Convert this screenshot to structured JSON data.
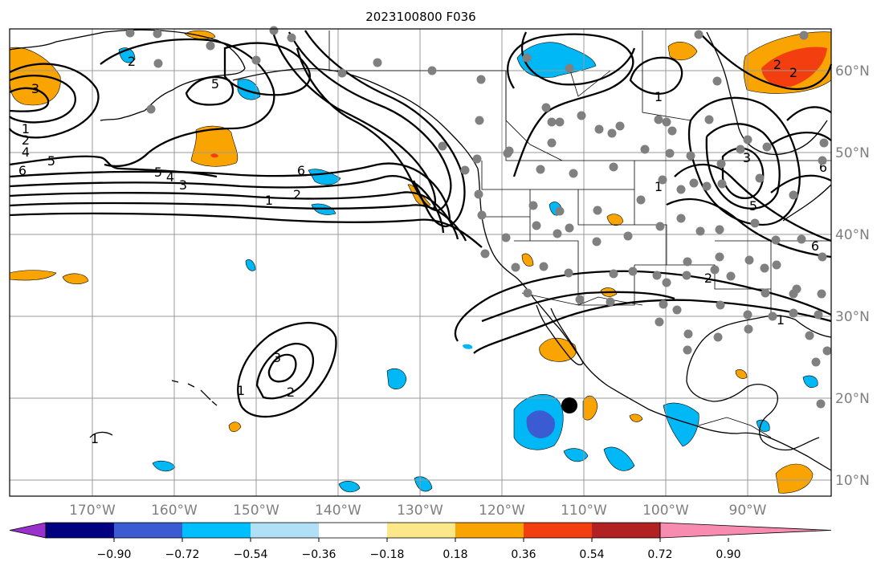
{
  "title": "2023100800 F036",
  "map": {
    "projection": "PlateCarree",
    "lon_range": [
      -180,
      -80
    ],
    "lat_range": [
      8,
      65
    ],
    "gridlines": true,
    "lon_ticks": [
      "170°W",
      "160°W",
      "150°W",
      "140°W",
      "130°W",
      "120°W",
      "110°W",
      "100°W",
      "90°W"
    ],
    "lat_ticks": [
      "60°N",
      "50°N",
      "40°N",
      "30°N",
      "20°N",
      "10°N"
    ],
    "contour_labels": [
      "1",
      "2",
      "3",
      "4",
      "5",
      "6"
    ],
    "colors": {
      "strong_negative": "#3a5bd1",
      "negative": "#00b8f5",
      "positive": "#f9a400",
      "strong_positive": "#f33e0f",
      "station_dot": "#808080",
      "marker": "#000000"
    }
  },
  "colorbar": {
    "ticks": [
      "−0.90",
      "−0.72",
      "−0.54",
      "−0.36",
      "−0.18",
      "0.18",
      "0.36",
      "0.54",
      "0.72",
      "0.90"
    ],
    "colors": [
      "#9932cc",
      "#000080",
      "#3a5bd1",
      "#00bfff",
      "#b0e0f5",
      "#ffffff",
      "#fce889",
      "#f9a400",
      "#f33e0f",
      "#b22222",
      "#f78bb0"
    ]
  }
}
